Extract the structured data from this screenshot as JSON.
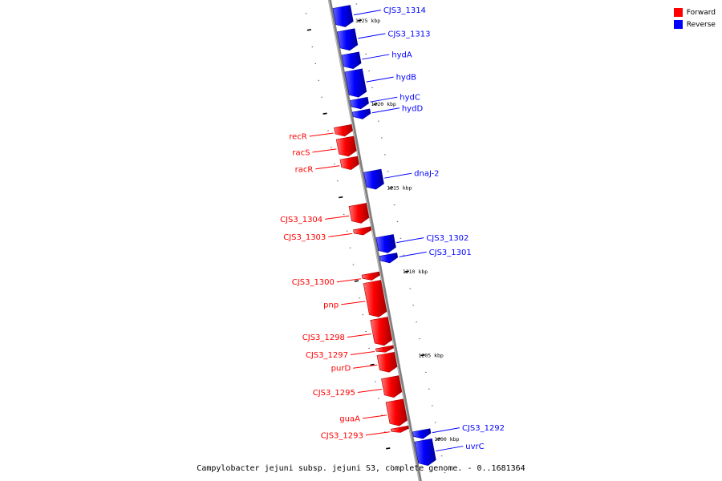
{
  "caption": "Campylobacter jejuni subsp. jejuni S3, complete genome. - 0..1681364",
  "legend": {
    "forward": "Forward",
    "reverse": "Reverse"
  },
  "colors": {
    "forward": "#ff0000",
    "reverse": "#0000ff",
    "axis": "#808080"
  },
  "axis": {
    "unit": "kbp",
    "ticks": [
      {
        "kbp": 1225,
        "label": "1225 kbp"
      },
      {
        "kbp": 1220,
        "label": "1220 kbp"
      },
      {
        "kbp": 1215,
        "label": "1215 kbp"
      },
      {
        "kbp": 1210,
        "label": "1210 kbp"
      },
      {
        "kbp": 1205,
        "label": "1205 kbp"
      },
      {
        "kbp": 1200,
        "label": "1200 kbp"
      }
    ]
  },
  "genes": [
    {
      "name": "CJS3_1314",
      "strand": "reverse",
      "start_kbp": 1226.0,
      "end_kbp": 1224.8
    },
    {
      "name": "CJS3_1313",
      "strand": "reverse",
      "start_kbp": 1224.6,
      "end_kbp": 1223.4
    },
    {
      "name": "hydA",
      "strand": "reverse",
      "start_kbp": 1223.2,
      "end_kbp": 1222.3
    },
    {
      "name": "hydB",
      "strand": "reverse",
      "start_kbp": 1222.2,
      "end_kbp": 1220.6
    },
    {
      "name": "hydC",
      "strand": "reverse",
      "start_kbp": 1220.5,
      "end_kbp": 1219.9
    },
    {
      "name": "hydD",
      "strand": "reverse",
      "start_kbp": 1219.8,
      "end_kbp": 1219.3
    },
    {
      "name": "recR",
      "strand": "forward",
      "start_kbp": 1219.1,
      "end_kbp": 1218.5
    },
    {
      "name": "racS",
      "strand": "forward",
      "start_kbp": 1218.4,
      "end_kbp": 1217.3
    },
    {
      "name": "racR",
      "strand": "forward",
      "start_kbp": 1217.2,
      "end_kbp": 1216.5
    },
    {
      "name": "dnaJ-2",
      "strand": "reverse",
      "start_kbp": 1216.2,
      "end_kbp": 1215.1
    },
    {
      "name": "CJS3_1304",
      "strand": "forward",
      "start_kbp": 1214.4,
      "end_kbp": 1213.3
    },
    {
      "name": "CJS3_1303",
      "strand": "forward",
      "start_kbp": 1213.0,
      "end_kbp": 1212.6
    },
    {
      "name": "CJS3_1302",
      "strand": "reverse",
      "start_kbp": 1212.3,
      "end_kbp": 1211.3
    },
    {
      "name": "CJS3_1301",
      "strand": "reverse",
      "start_kbp": 1211.2,
      "end_kbp": 1210.7
    },
    {
      "name": "CJS3_1300",
      "strand": "forward",
      "start_kbp": 1210.3,
      "end_kbp": 1209.9
    },
    {
      "name": "pnp",
      "strand": "forward",
      "start_kbp": 1209.8,
      "end_kbp": 1207.7
    },
    {
      "name": "CJS3_1298",
      "strand": "forward",
      "start_kbp": 1207.6,
      "end_kbp": 1206.0
    },
    {
      "name": "CJS3_1297",
      "strand": "forward",
      "start_kbp": 1205.9,
      "end_kbp": 1205.6
    },
    {
      "name": "purD",
      "strand": "forward",
      "start_kbp": 1205.5,
      "end_kbp": 1204.4
    },
    {
      "name": "CJS3_1295",
      "strand": "forward",
      "start_kbp": 1204.1,
      "end_kbp": 1202.9
    },
    {
      "name": "guaA",
      "strand": "forward",
      "start_kbp": 1202.7,
      "end_kbp": 1201.2
    },
    {
      "name": "CJS3_1293",
      "strand": "forward",
      "start_kbp": 1201.1,
      "end_kbp": 1200.8
    },
    {
      "name": "CJS3_1292",
      "strand": "reverse",
      "start_kbp": 1200.7,
      "end_kbp": 1200.2
    },
    {
      "name": "uvrC",
      "strand": "reverse",
      "start_kbp": 1200.1,
      "end_kbp": 1198.6
    }
  ]
}
